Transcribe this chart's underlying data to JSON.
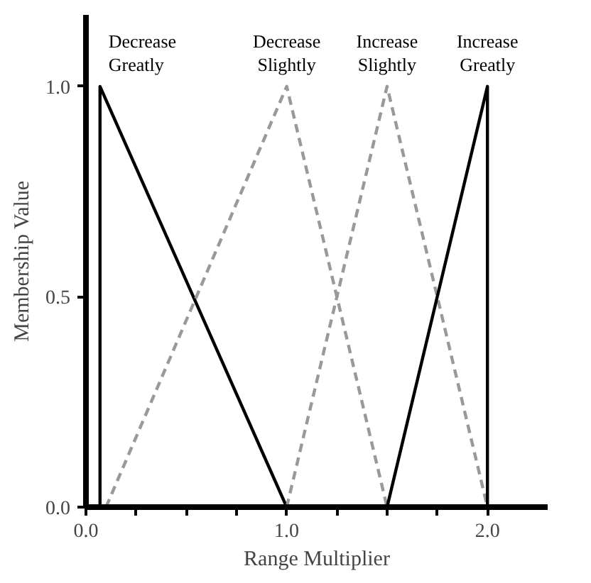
{
  "chart_data": {
    "type": "line",
    "xlabel": "Range Multiplier",
    "ylabel": "Membership Value",
    "xlim": [
      0,
      2.3
    ],
    "ylim": [
      0,
      1.17
    ],
    "xticks": [
      {
        "value": 0,
        "label": "0.0"
      },
      {
        "value": 0.25,
        "label": null
      },
      {
        "value": 0.5,
        "label": null
      },
      {
        "value": 0.75,
        "label": null
      },
      {
        "value": 1,
        "label": "1.0"
      },
      {
        "value": 1.25,
        "label": null
      },
      {
        "value": 1.5,
        "label": null
      },
      {
        "value": 1.75,
        "label": null
      },
      {
        "value": 2,
        "label": "2.0"
      }
    ],
    "yticks": [
      {
        "value": 0,
        "label": "0.0"
      },
      {
        "value": 0.5,
        "label": "0.5"
      },
      {
        "value": 1,
        "label": "1.0"
      }
    ],
    "grid": false,
    "marker": "none",
    "series": [
      {
        "name": "Decrease Greatly",
        "color": "#000000",
        "line_style": "solid",
        "x": [
          0.07,
          0.07,
          1.0
        ],
        "values": [
          0,
          1,
          0
        ]
      },
      {
        "name": "Decrease Slightly",
        "color": "#999999",
        "line_style": "dashed",
        "x": [
          0.1,
          1.0,
          1.5
        ],
        "values": [
          0,
          1,
          0
        ]
      },
      {
        "name": "Increase Slightly",
        "color": "#999999",
        "line_style": "dashed",
        "x": [
          1.0,
          1.5,
          2.0
        ],
        "values": [
          0,
          1,
          0
        ]
      },
      {
        "name": "Increase Greatly",
        "color": "#000000",
        "line_style": "solid",
        "x": [
          1.5,
          2.0,
          2.0
        ],
        "values": [
          0,
          1,
          0
        ]
      }
    ]
  }
}
